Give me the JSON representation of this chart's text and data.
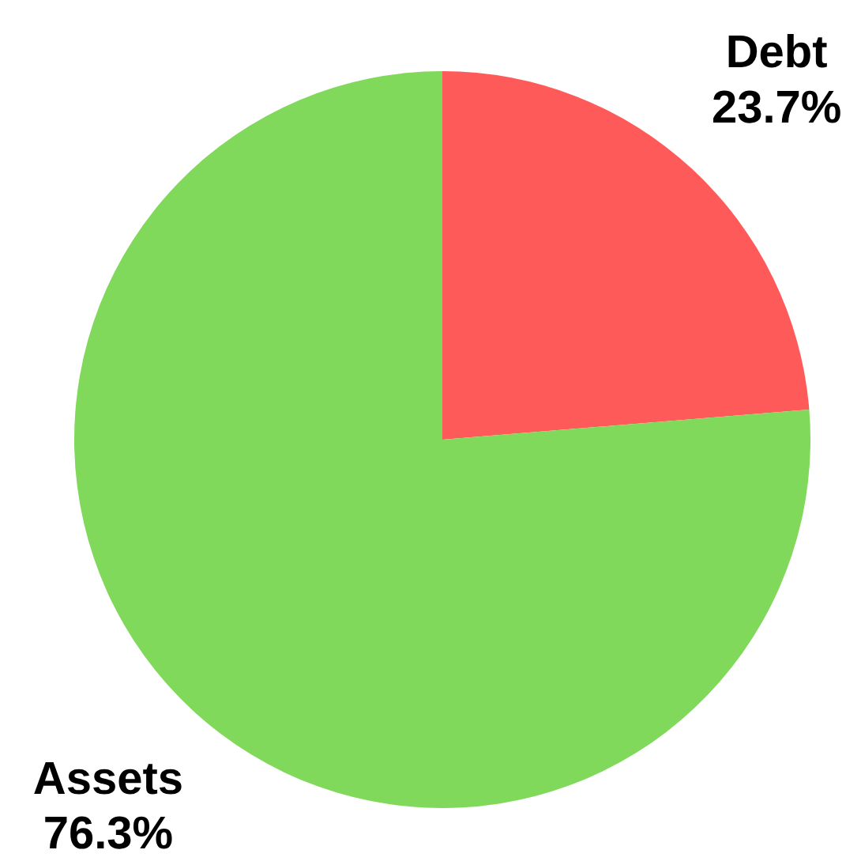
{
  "chart_data": {
    "type": "pie",
    "categories": [
      "Debt",
      "Assets"
    ],
    "values": [
      23.7,
      76.3
    ],
    "colors": [
      "#ff5a5a",
      "#80d95a"
    ],
    "value_labels": [
      "23.7%",
      "76.3%"
    ]
  }
}
